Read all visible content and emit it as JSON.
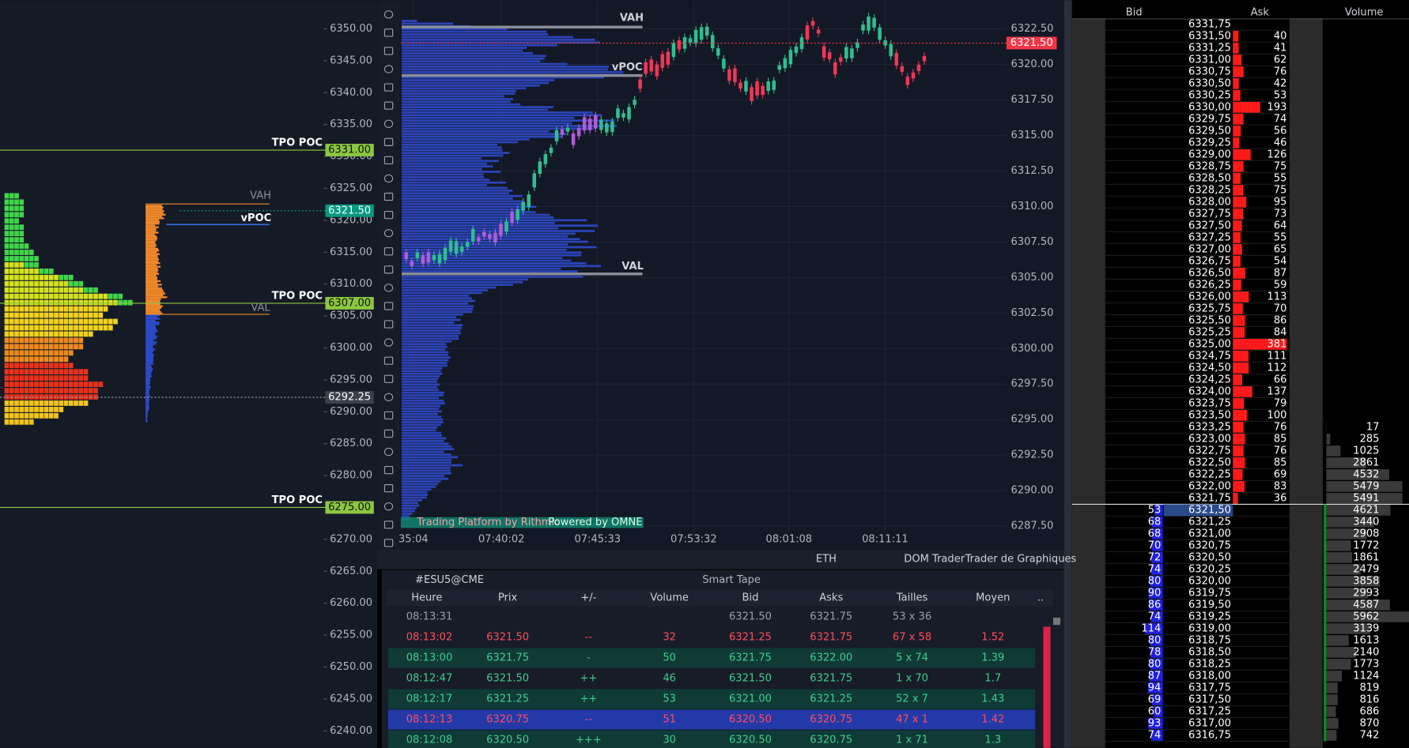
{
  "left_chart": {
    "price_axis": [
      {
        "value": 6350,
        "label": "6350.00"
      },
      {
        "value": 6345,
        "label": "6345.00"
      },
      {
        "value": 6340,
        "label": "6340.00"
      },
      {
        "value": 6335,
        "label": "6335.00"
      },
      {
        "value": 6330,
        "label": "6330.00"
      },
      {
        "value": 6325,
        "label": "6325.00"
      },
      {
        "value": 6320,
        "label": "6320.00"
      },
      {
        "value": 6315,
        "label": "6315.00"
      },
      {
        "value": 6310,
        "label": "6310.00"
      },
      {
        "value": 6305,
        "label": "6305.00"
      },
      {
        "value": 6300,
        "label": "6300.00"
      },
      {
        "value": 6295,
        "label": "6295.00"
      },
      {
        "value": 6290,
        "label": "6290.00"
      },
      {
        "value": 6285,
        "label": "6285.00"
      },
      {
        "value": 6280,
        "label": "6280.00"
      },
      {
        "value": 6275,
        "label": "6275.00"
      },
      {
        "value": 6270,
        "label": "6270.00"
      },
      {
        "value": 6265,
        "label": "6265.00"
      },
      {
        "value": 6260,
        "label": "6260.00"
      },
      {
        "value": 6255,
        "label": "6255.00"
      },
      {
        "value": 6250,
        "label": "6250.00"
      },
      {
        "value": 6245,
        "label": "6245.00"
      },
      {
        "value": 6240,
        "label": "6240.00"
      }
    ],
    "levels": [
      {
        "name": "TPO POC",
        "price": {
          "value": 6331,
          "label": "6331.00"
        }
      },
      {
        "name": "TPO POC",
        "price": {
          "value": 6307,
          "label": "6307.00"
        }
      },
      {
        "name": "TPO POC",
        "price": {
          "value": 6275,
          "label": "6275.00"
        }
      }
    ],
    "tags": [
      {
        "price": {
          "value": 6321.5,
          "label": "6321.50"
        },
        "color": "#089981"
      },
      {
        "price": {
          "value": 6292.25,
          "label": "6292.25"
        },
        "color": "#3b404c"
      }
    ],
    "profile_labels": [
      "VAH",
      "vPOC",
      "VAL"
    ]
  },
  "main_chart": {
    "price_axis": [
      {
        "value": 6322.5,
        "label": "6322.50"
      },
      {
        "value": 6320,
        "label": "6320.00"
      },
      {
        "value": 6317.5,
        "label": "6317.50"
      },
      {
        "value": 6315,
        "label": "6315.00"
      },
      {
        "value": 6312.5,
        "label": "6312.50"
      },
      {
        "value": 6310,
        "label": "6310.00"
      },
      {
        "value": 6307.5,
        "label": "6307.50"
      },
      {
        "value": 6305,
        "label": "6305.00"
      },
      {
        "value": 6302.5,
        "label": "6302.50"
      },
      {
        "value": 6300,
        "label": "6300.00"
      },
      {
        "value": 6297.5,
        "label": "6297.50"
      },
      {
        "value": 6295,
        "label": "6295.00"
      },
      {
        "value": 6292.5,
        "label": "6292.50"
      },
      {
        "value": 6290,
        "label": "6290.00"
      },
      {
        "value": 6287.5,
        "label": "6287.50"
      }
    ],
    "last_price": {
      "value": 6321.5,
      "label": "6321.50"
    },
    "profile_labels": [
      "VAH",
      "vPOC",
      "VAL"
    ],
    "time_axis": [
      "35:04",
      "07:40:02",
      "07:45:33",
      "07:53:32",
      "08:01:08",
      "08:11:11"
    ],
    "watermarks": [
      "Trading Platform by Rithmic",
      "Powered by OMNE"
    ]
  },
  "toolbar": {
    "session": "ETH",
    "buttons": [
      "DOM Trader",
      "Trader de Graphiques"
    ]
  },
  "smart_tape": {
    "symbol": "#ESU5@CME",
    "title": "Smart Tape",
    "columns": [
      "Heure",
      "Prix",
      "+/-",
      "Volume",
      "Bid",
      "Asks",
      "Tailles",
      "Moyen",
      ".."
    ],
    "rows": [
      {
        "color": "#9aa0aa",
        "background": null,
        "cells": [
          "08:13:31",
          null,
          null,
          null,
          "6321.50",
          "6321.75",
          "53 x 36",
          null
        ]
      },
      {
        "color": "#ff4d5e",
        "background": null,
        "cells": [
          "08:13:02",
          "6321.50",
          "--",
          32,
          "6321.25",
          "6321.75",
          "67 x 58",
          1.52
        ]
      },
      {
        "color": "#3ecf8e",
        "background": "#0f3a36",
        "cells": [
          "08:13:00",
          "6321.75",
          "-",
          50,
          "6321.75",
          "6322.00",
          "5 x 74",
          1.39
        ]
      },
      {
        "color": "#3ecf8e",
        "background": null,
        "cells": [
          "08:12:47",
          "6321.50",
          "++",
          46,
          "6321.50",
          "6321.75",
          "1 x 70",
          1.7
        ]
      },
      {
        "color": "#3ecf8e",
        "background": "#0f3a36",
        "cells": [
          "08:12:17",
          "6321.25",
          "++",
          53,
          "6321.00",
          "6321.25",
          "52 x 7",
          1.43
        ]
      },
      {
        "color": "#ff4d5e",
        "background": "#2339a8",
        "cells": [
          "08:12:13",
          "6320.75",
          "--",
          51,
          "6320.50",
          "6320.75",
          "47 x 1",
          1.42
        ]
      },
      {
        "color": "#3ecf8e",
        "background": "#0f3a36",
        "cells": [
          "08:12:08",
          "6320.50",
          "+++",
          30,
          "6320.50",
          "6320.75",
          "1 x 71",
          1.3
        ]
      }
    ]
  },
  "dom": {
    "columns": [
      "Bid",
      "Ask",
      "Volume"
    ],
    "rows": [
      {
        "price": "6331,75"
      },
      {
        "price": "6331,50",
        "ask": 40
      },
      {
        "price": "6331,25",
        "ask": 41
      },
      {
        "price": "6331,00",
        "ask": 62
      },
      {
        "price": "6330,75",
        "ask": 76
      },
      {
        "price": "6330,50",
        "ask": 42
      },
      {
        "price": "6330,25",
        "ask": 53
      },
      {
        "price": "6330,00",
        "ask": 193
      },
      {
        "price": "6329,75",
        "ask": 74
      },
      {
        "price": "6329,50",
        "ask": 56
      },
      {
        "price": "6329,25",
        "ask": 46
      },
      {
        "price": "6329,00",
        "ask": 126
      },
      {
        "price": "6328,75",
        "ask": 75
      },
      {
        "price": "6328,50",
        "ask": 55
      },
      {
        "price": "6328,25",
        "ask": 75
      },
      {
        "price": "6328,00",
        "ask": 95
      },
      {
        "price": "6327,75",
        "ask": 73
      },
      {
        "price": "6327,50",
        "ask": 64
      },
      {
        "price": "6327,25",
        "ask": 55
      },
      {
        "price": "6327,00",
        "ask": 65
      },
      {
        "price": "6326,75",
        "ask": 54
      },
      {
        "price": "6326,50",
        "ask": 87
      },
      {
        "price": "6326,25",
        "ask": 59
      },
      {
        "price": "6326,00",
        "ask": 113
      },
      {
        "price": "6325,75",
        "ask": 70
      },
      {
        "price": "6325,50",
        "ask": 86
      },
      {
        "price": "6325,25",
        "ask": 84
      },
      {
        "price": "6325,00",
        "ask": 381
      },
      {
        "price": "6324,75",
        "ask": 111
      },
      {
        "price": "6324,50",
        "ask": 112
      },
      {
        "price": "6324,25",
        "ask": 66
      },
      {
        "price": "6324,00",
        "ask": 137
      },
      {
        "price": "6323,75",
        "ask": 79
      },
      {
        "price": "6323,50",
        "ask": 100
      },
      {
        "price": "6323,25",
        "ask": 76,
        "volume": 17
      },
      {
        "price": "6323,00",
        "ask": 85,
        "volume": 285
      },
      {
        "price": "6322,75",
        "ask": 76,
        "volume": 1025
      },
      {
        "price": "6322,50",
        "ask": 85,
        "volume": 2861
      },
      {
        "price": "6322,25",
        "ask": 69,
        "volume": 4532
      },
      {
        "price": "6322,00",
        "ask": 83,
        "volume": 5479
      },
      {
        "price": "6321,75",
        "ask": 36,
        "volume": 5491
      },
      {
        "price": "6321,50",
        "bid": 53,
        "volume": 4621
      },
      {
        "price": "6321,25",
        "bid": 68,
        "volume": 3440
      },
      {
        "price": "6321,00",
        "bid": 68,
        "volume": 2908
      },
      {
        "price": "6320,75",
        "bid": 70,
        "volume": 1772
      },
      {
        "price": "6320,50",
        "bid": 72,
        "volume": 1861
      },
      {
        "price": "6320,25",
        "bid": 74,
        "volume": 2479
      },
      {
        "price": "6320,00",
        "bid": 80,
        "volume": 3858
      },
      {
        "price": "6319,75",
        "bid": 90,
        "volume": 2993
      },
      {
        "price": "6319,50",
        "bid": 86,
        "volume": 4587
      },
      {
        "price": "6319,25",
        "bid": 74,
        "volume": 5962
      },
      {
        "price": "6319,00",
        "bid": 114,
        "volume": 3139
      },
      {
        "price": "6318,75",
        "bid": 80,
        "volume": 1613
      },
      {
        "price": "6318,50",
        "bid": 78,
        "volume": 2140
      },
      {
        "price": "6318,25",
        "bid": 80,
        "volume": 1773
      },
      {
        "price": "6318,00",
        "bid": 87,
        "volume": 1124
      },
      {
        "price": "6317,75",
        "bid": 94,
        "volume": 819
      },
      {
        "price": "6317,50",
        "bid": 69,
        "volume": 816
      },
      {
        "price": "6317,25",
        "bid": 60,
        "volume": 686
      },
      {
        "price": "6317,00",
        "bid": 93,
        "volume": 870
      },
      {
        "price": "6316,75",
        "bid": 74,
        "volume": 742
      }
    ]
  }
}
